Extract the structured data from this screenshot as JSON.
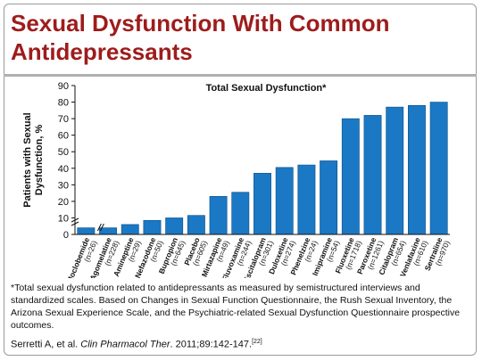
{
  "slide": {
    "title_line1": "Sexual Dysfunction With Common",
    "title_line2": "Antidepressants",
    "footnote": "*Total sexual dysfunction related to antidepressants as measured by semistructured interviews and standardized scales. Based on Changes in Sexual Function Questionnaire, the Rush Sexual Inventory, the Arizona Sexual Experience Scale, and the Psychiatric-related Sexual Dysfunction Questionnaire prospective outcomes.",
    "citation_author": "Serretti A, et al. ",
    "citation_journal": "Clin Pharmacol Ther",
    "citation_rest": ". 2011;89:142-147.",
    "citation_ref": "[22]"
  },
  "chart_data": {
    "type": "bar",
    "title": "Total Sexual Dysfunction*",
    "ylabel": "Patients with Sexual Dysfunction, %",
    "xlabel": "",
    "ylim": [
      0,
      90
    ],
    "yticks": [
      0,
      10,
      20,
      30,
      40,
      50,
      60,
      70,
      80,
      90
    ],
    "axis_break": true,
    "bar_color": "#1b78c4",
    "categories": [
      {
        "name": "Moclobemide",
        "n": "(n=26)"
      },
      {
        "name": "Agomelatine",
        "n": "(n=228)"
      },
      {
        "name": "Amineptine",
        "n": "(n=29)"
      },
      {
        "name": "Nefazodone",
        "n": "(n=50)"
      },
      {
        "name": "Bupropion",
        "n": "(n=645)"
      },
      {
        "name": "Placebo",
        "n": "(n=605)"
      },
      {
        "name": "Mirtazapine",
        "n": "(n=49)"
      },
      {
        "name": "Fluvoxamine",
        "n": "(n=244)"
      },
      {
        "name": "Escitalopram",
        "n": "(n=301)"
      },
      {
        "name": "Duloxetine",
        "n": "(n=274)"
      },
      {
        "name": "Phenelzine",
        "n": "(n=24)"
      },
      {
        "name": "Imipramine",
        "n": "(n=54)"
      },
      {
        "name": "Fluoxetine",
        "n": "(n=1718)"
      },
      {
        "name": "Paroxetine",
        "n": "(n=1261)"
      },
      {
        "name": "Citalopram",
        "n": "(n=654)"
      },
      {
        "name": "Venlafaxine",
        "n": "(n=610)"
      },
      {
        "name": "Sertraline",
        "n": "(n=970)"
      }
    ],
    "values": [
      4,
      4,
      6,
      8.5,
      10,
      11.5,
      23,
      25.5,
      37,
      40.5,
      42,
      44.5,
      70,
      72,
      77,
      78,
      80
    ]
  }
}
